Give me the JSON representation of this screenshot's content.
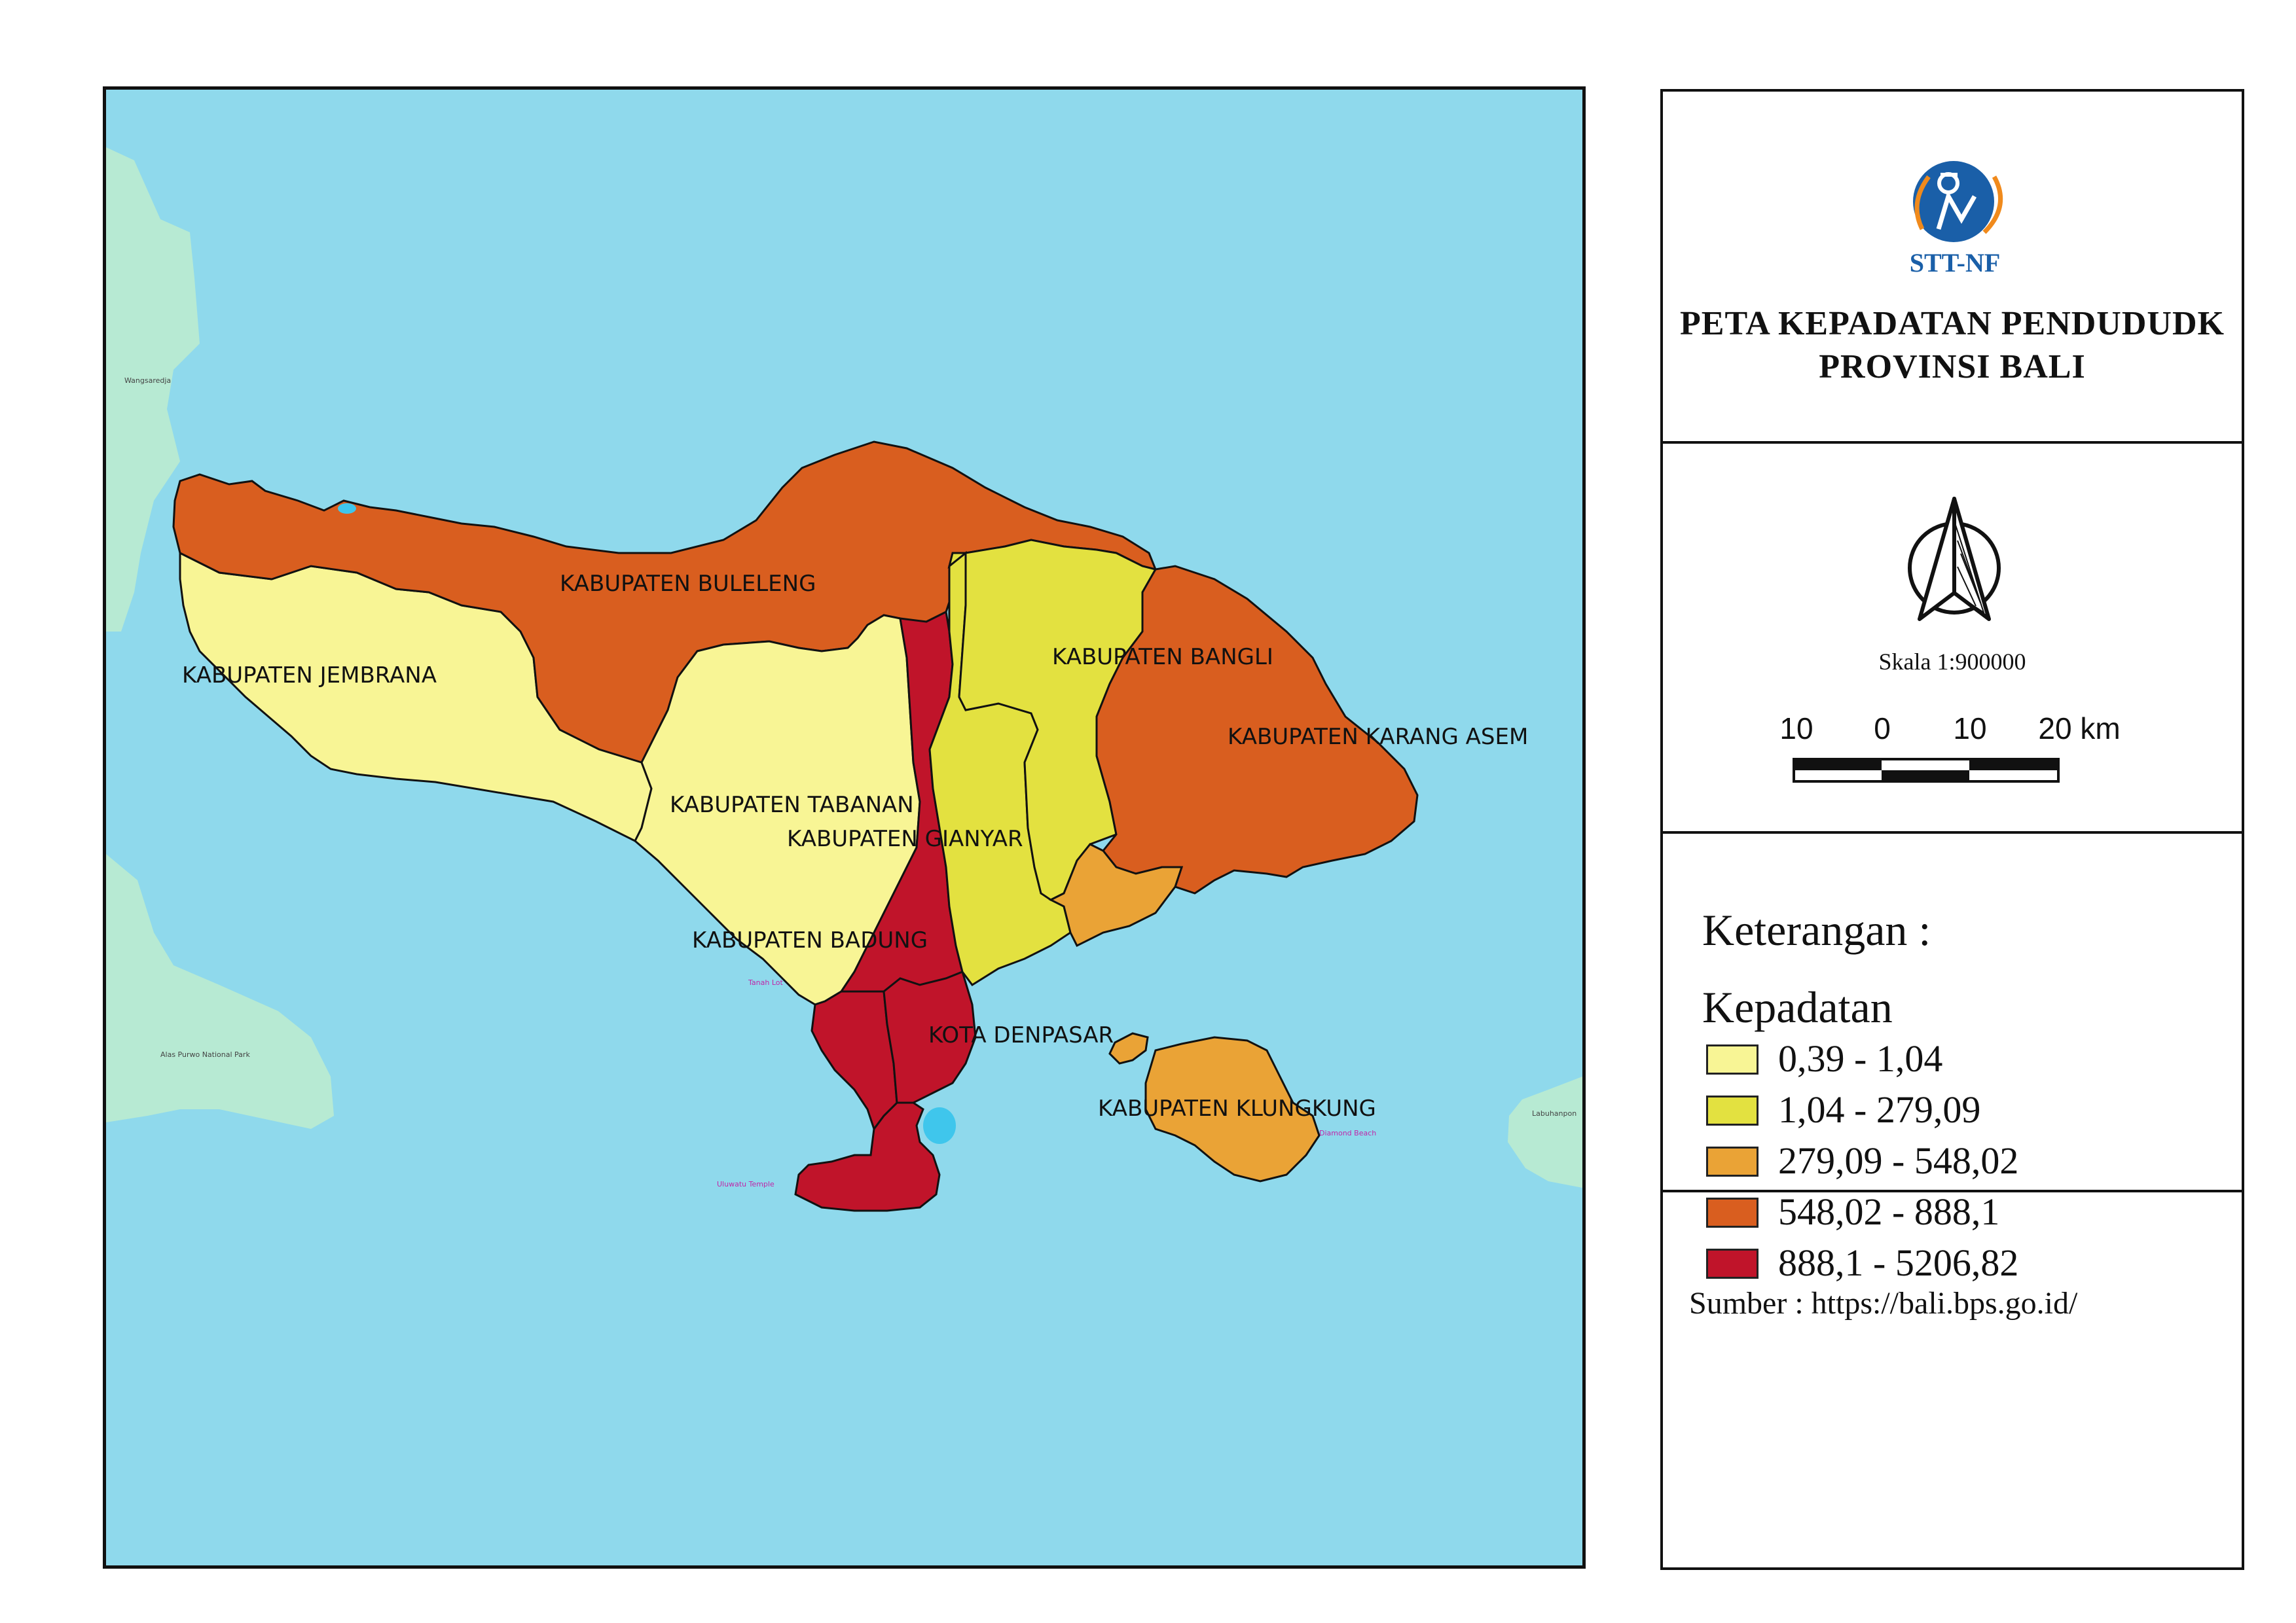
{
  "map": {
    "regions": [
      {
        "id": "jembrana",
        "label": "KABUPATEN JEMBRANA",
        "class": "0,39 - 1,04"
      },
      {
        "id": "buleleng",
        "label": "KABUPATEN BULELENG",
        "class": "548,02 - 888,1"
      },
      {
        "id": "tabanan",
        "label": "KABUPATEN TABANAN",
        "class": "0,39 - 1,04"
      },
      {
        "id": "badung",
        "label": "KABUPATEN BADUNG",
        "class": "888,1 - 5206,82"
      },
      {
        "id": "gianyar",
        "label": "KABUPATEN GIANYAR",
        "class": "1,04 - 279,09"
      },
      {
        "id": "bangli",
        "label": "KABUPATEN BANGLI",
        "class": "1,04 - 279,09"
      },
      {
        "id": "karangasem",
        "label": "KABUPATEN KARANG ASEM",
        "class": "548,02 - 888,1"
      },
      {
        "id": "klungkung",
        "label": "KABUPATEN KLUNGKUNG",
        "class": "279,09 - 548,02"
      },
      {
        "id": "denpasar",
        "label": "KOTA DENPASAR",
        "class": "888,1 - 5206,82"
      }
    ],
    "basemap_places": [
      "Wangsaredja",
      "Alas Purwo National Park",
      "Tanah Lot",
      "Uluwatu Temple",
      "Diamond Beach",
      "Labuhanpon"
    ],
    "colors": {
      "sea": "#8fd9ec",
      "land_basemap": "#a8e6c8"
    }
  },
  "title_block": {
    "logo_text": "STT-NF",
    "title_line1": "PETA KEPADATAN PENDUDUDK",
    "title_line2": "PROVINSI BALI"
  },
  "scale": {
    "label": "Skala 1:900000",
    "ticks": [
      "10",
      "0",
      "10",
      "20 km"
    ]
  },
  "legend": {
    "heading": "Keterangan :",
    "subheading": "Kepadatan",
    "items": [
      {
        "label": "0,39 - 1,04",
        "color": "#f8f595"
      },
      {
        "label": "1,04 - 279,09",
        "color": "#e3e140"
      },
      {
        "label": "279,09 - 548,02",
        "color": "#eaa336"
      },
      {
        "label": "548,02 - 888,1",
        "color": "#d95e1f"
      },
      {
        "label": "888,1 - 5206,82",
        "color": "#c0142a"
      }
    ]
  },
  "source": {
    "text": "Sumber : https://bali.bps.go.id/"
  }
}
